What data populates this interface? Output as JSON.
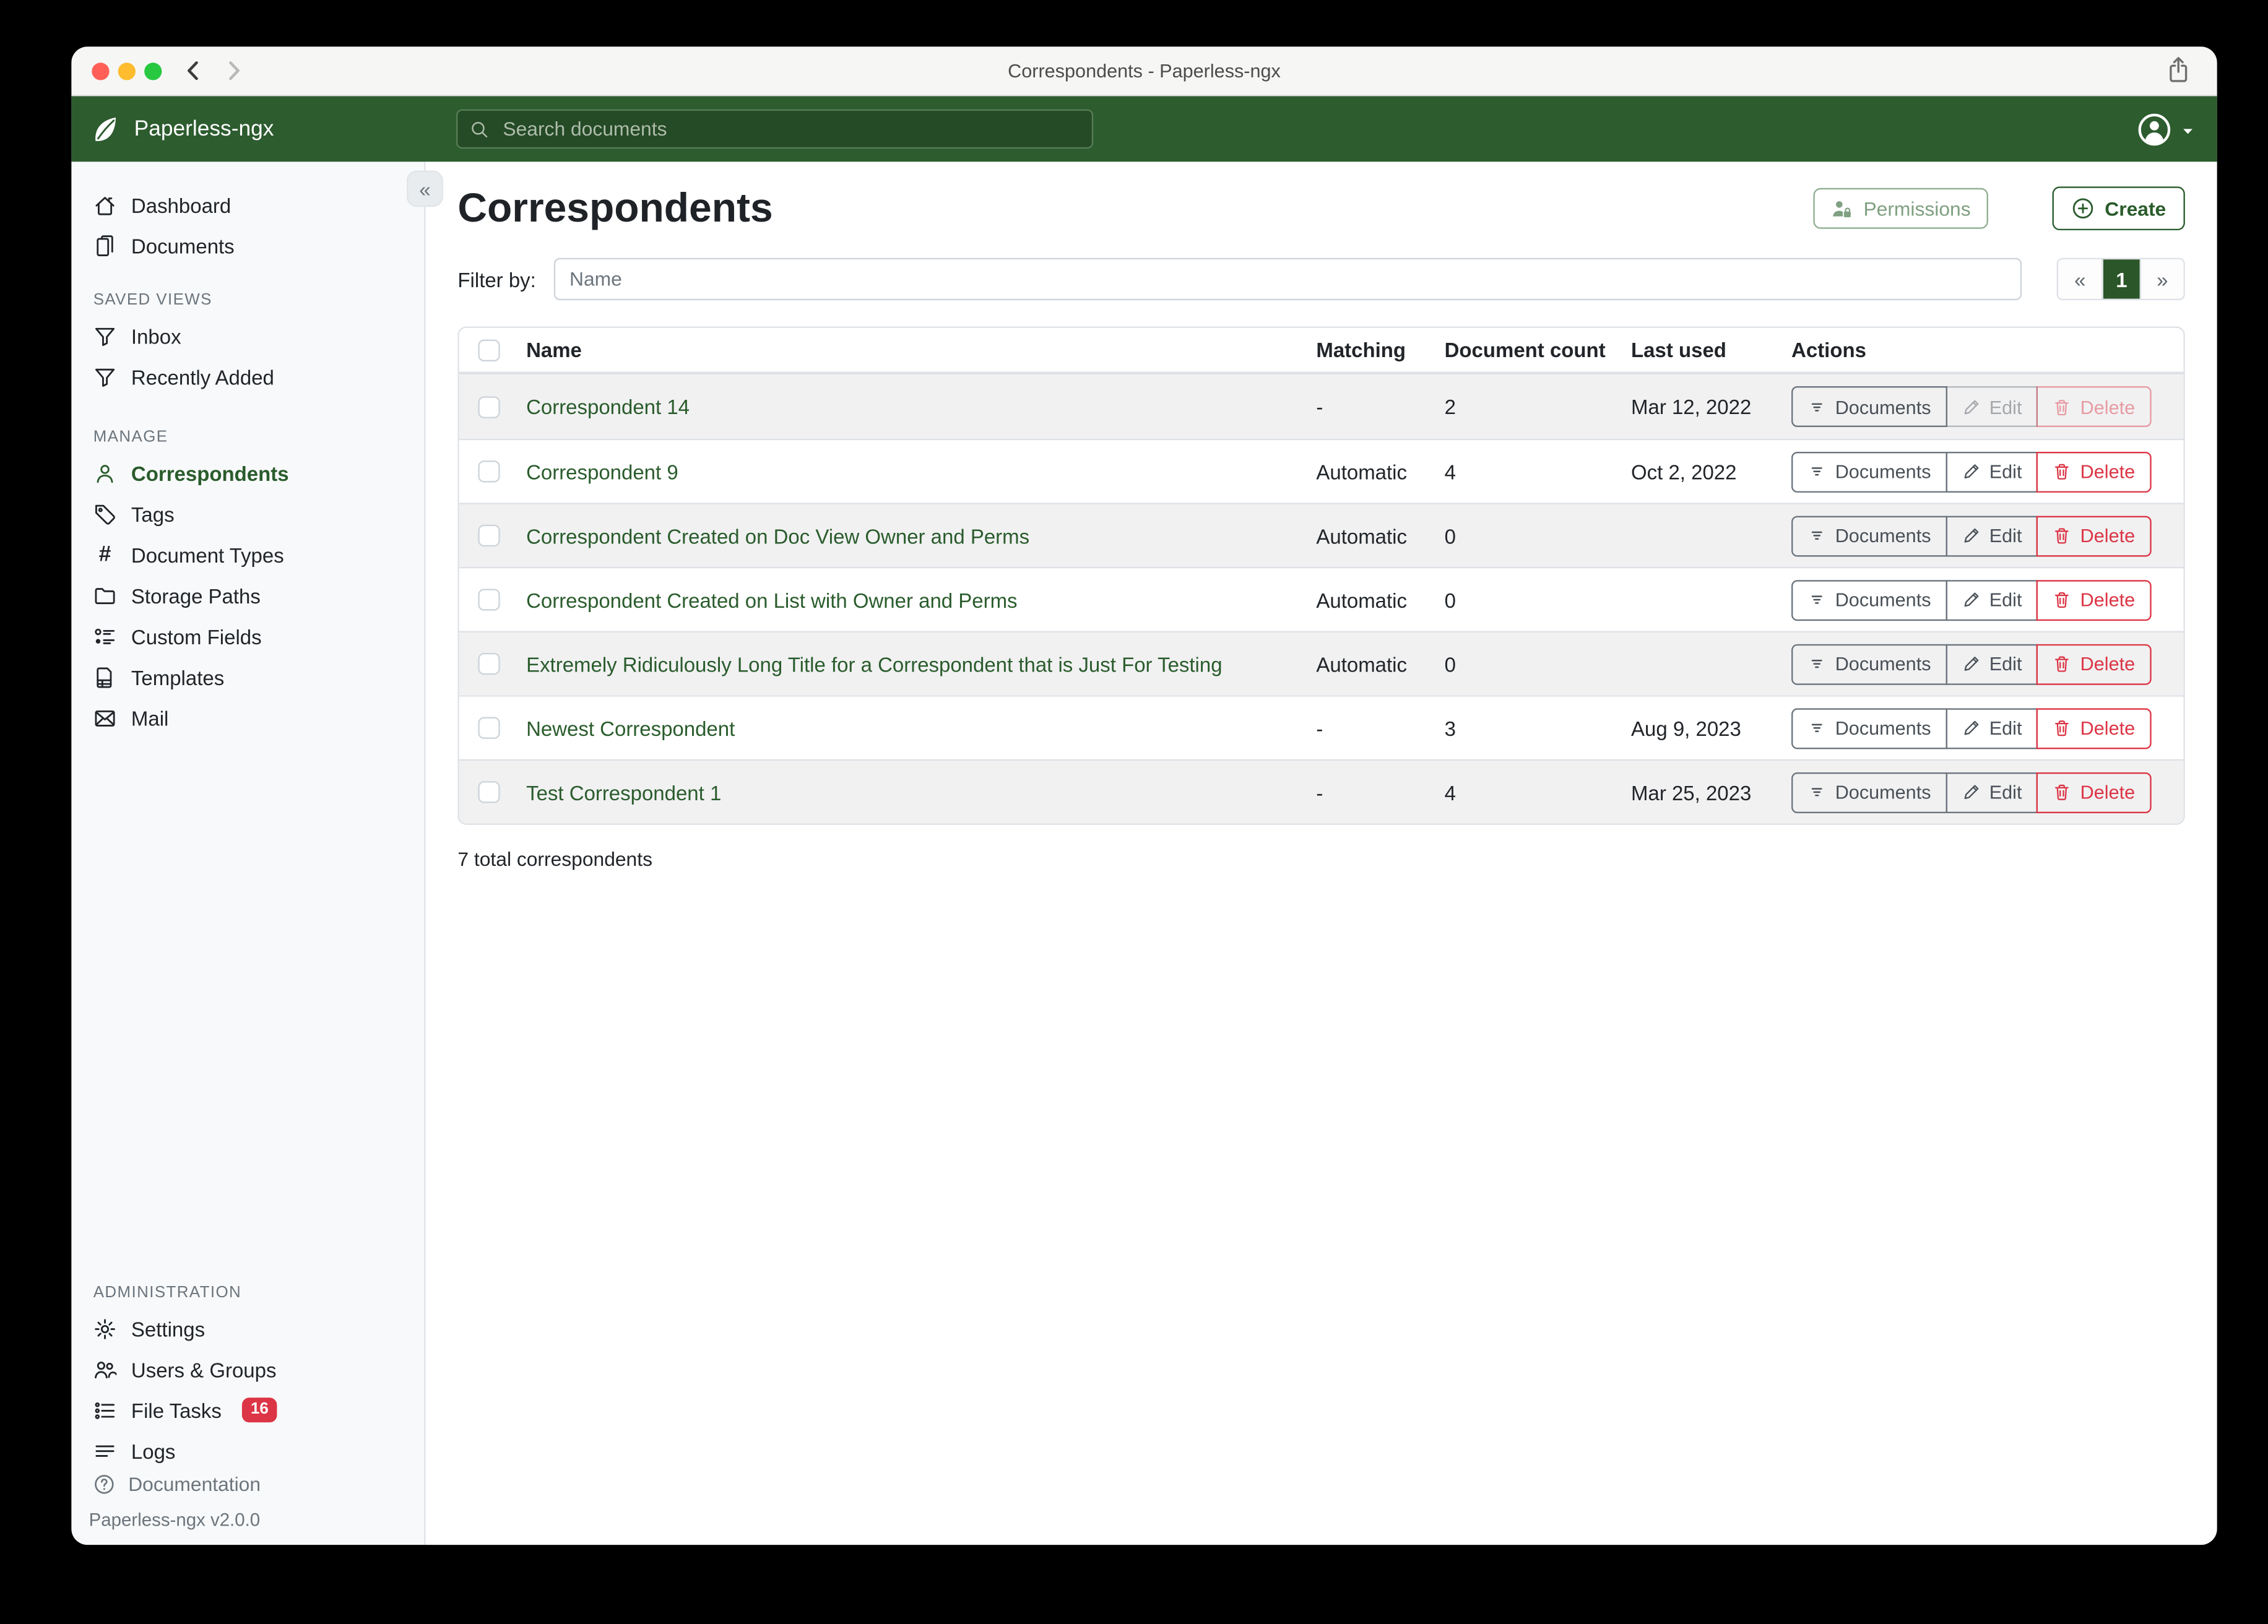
{
  "window": {
    "title": "Correspondents - Paperless-ngx"
  },
  "navbar": {
    "brand": "Paperless-ngx",
    "search_placeholder": "Search documents"
  },
  "sidebar": {
    "collapse_glyph": "«",
    "primary": [
      {
        "label": "Dashboard",
        "icon": "house"
      },
      {
        "label": "Documents",
        "icon": "files"
      }
    ],
    "sections": [
      {
        "title": "SAVED VIEWS",
        "items": [
          {
            "label": "Inbox",
            "icon": "funnel"
          },
          {
            "label": "Recently Added",
            "icon": "funnel"
          }
        ]
      },
      {
        "title": "MANAGE",
        "items": [
          {
            "label": "Correspondents",
            "icon": "person",
            "active": true
          },
          {
            "label": "Tags",
            "icon": "tag"
          },
          {
            "label": "Document Types",
            "icon": "hash"
          },
          {
            "label": "Storage Paths",
            "icon": "folder"
          },
          {
            "label": "Custom Fields",
            "icon": "fields"
          },
          {
            "label": "Templates",
            "icon": "template"
          },
          {
            "label": "Mail",
            "icon": "envelope"
          }
        ]
      },
      {
        "title": "ADMINISTRATION",
        "items": [
          {
            "label": "Settings",
            "icon": "gear"
          },
          {
            "label": "Users & Groups",
            "icon": "people"
          },
          {
            "label": "File Tasks",
            "icon": "tasks",
            "badge": "16"
          },
          {
            "label": "Logs",
            "icon": "logs"
          }
        ]
      }
    ],
    "footer": {
      "documentation": "Documentation",
      "version": "Paperless-ngx v2.0.0"
    }
  },
  "page": {
    "title": "Correspondents",
    "permissions_label": "Permissions",
    "create_label": "Create",
    "filter_label": "Filter by:",
    "filter_placeholder": "Name",
    "pagination": {
      "prev": "«",
      "current": "1",
      "next": "»"
    },
    "total_label": "7 total correspondents"
  },
  "table": {
    "headers": [
      "Name",
      "Matching",
      "Document count",
      "Last used",
      "Actions"
    ],
    "actions": {
      "documents": "Documents",
      "edit": "Edit",
      "delete": "Delete"
    },
    "rows": [
      {
        "name": "Correspondent 14",
        "matching": "-",
        "count": "2",
        "last_used": "Mar 12, 2022",
        "edit_disabled": true
      },
      {
        "name": "Correspondent 9",
        "matching": "Automatic",
        "count": "4",
        "last_used": "Oct 2, 2022",
        "edit_disabled": false
      },
      {
        "name": "Correspondent Created on Doc View Owner and Perms",
        "matching": "Automatic",
        "count": "0",
        "last_used": "",
        "edit_disabled": false
      },
      {
        "name": "Correspondent Created on List with Owner and Perms",
        "matching": "Automatic",
        "count": "0",
        "last_used": "",
        "edit_disabled": false
      },
      {
        "name": "Extremely Ridiculously Long Title for a Correspondent that is Just For Testing",
        "matching": "Automatic",
        "count": "0",
        "last_used": "",
        "edit_disabled": false
      },
      {
        "name": "Newest Correspondent",
        "matching": "-",
        "count": "3",
        "last_used": "Aug 9, 2023",
        "edit_disabled": false
      },
      {
        "name": "Test Correspondent 1",
        "matching": "-",
        "count": "4",
        "last_used": "Mar 25, 2023",
        "edit_disabled": false
      }
    ]
  },
  "colors": {
    "navbar_green": "#2d5c2f",
    "accent_green": "#2a5c2c",
    "pagination_active_green": "#2b5629",
    "danger_red": "#dc3545",
    "sidebar_bg": "#f8f9fa",
    "stripe_gray": "#f1f1f2",
    "border_gray": "#dee2e6",
    "traffic_red": "#ff5f57",
    "traffic_yellow": "#febc2e",
    "traffic_green": "#28c840"
  }
}
